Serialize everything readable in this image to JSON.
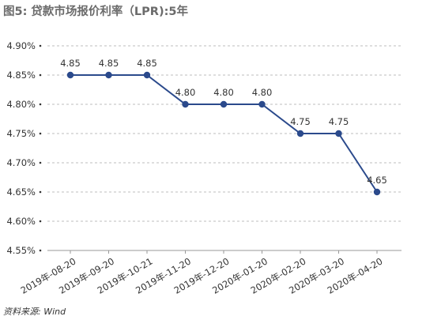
{
  "chart_data": {
    "type": "line",
    "title": "图5: 贷款市场报价利率（LPR):5年",
    "source": "资料来源: Wind",
    "categories": [
      "2019年-08-20",
      "2019年-09-20",
      "2019年-10-21",
      "2019年-11-20",
      "2019年-12-20",
      "2020年-01-20",
      "2020年-02-20",
      "2020年-03-20",
      "2020年-04-20"
    ],
    "series": [
      {
        "values": [
          4.85,
          4.85,
          4.85,
          4.8,
          4.8,
          4.8,
          4.75,
          4.75,
          4.65
        ]
      }
    ],
    "data_labels": [
      "4.85",
      "4.85",
      "4.85",
      "4.80",
      "4.80",
      "4.80",
      "4.75",
      "4.75",
      "4.65"
    ],
    "yticks": [
      4.55,
      4.6,
      4.65,
      4.7,
      4.75,
      4.8,
      4.85,
      4.9
    ],
    "ytick_labels": [
      "4.55%",
      "4.60%",
      "4.65%",
      "4.70%",
      "4.75%",
      "4.80%",
      "4.85%",
      "4.90%"
    ],
    "ylim": [
      4.55,
      4.9
    ],
    "grid": true,
    "colors": {
      "line": "#2b4a8c",
      "grid": "#bdbdbd",
      "axis": "#999999"
    }
  }
}
